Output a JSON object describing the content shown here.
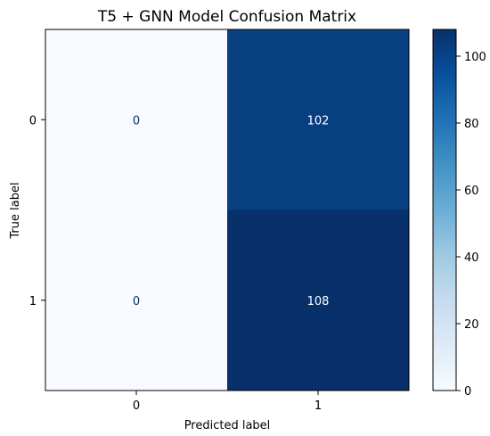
{
  "chart_data": {
    "type": "heatmap",
    "title": "T5 + GNN Model Confusion Matrix",
    "xlabel": "Predicted label",
    "ylabel": "True label",
    "x_categories": [
      "0",
      "1"
    ],
    "y_categories": [
      "0",
      "1"
    ],
    "matrix": [
      [
        0,
        102
      ],
      [
        0,
        108
      ]
    ],
    "colormap": "Blues",
    "colorbar": {
      "range": [
        0,
        108
      ],
      "ticks": [
        0,
        20,
        40,
        60,
        80,
        100
      ],
      "tick_labels": [
        "0",
        "20",
        "40",
        "60",
        "80",
        "100"
      ]
    }
  },
  "colors": {
    "low": "#f7fbff",
    "high": "#08306b",
    "text_dark": "#08306b",
    "text_light": "#ffffff"
  }
}
